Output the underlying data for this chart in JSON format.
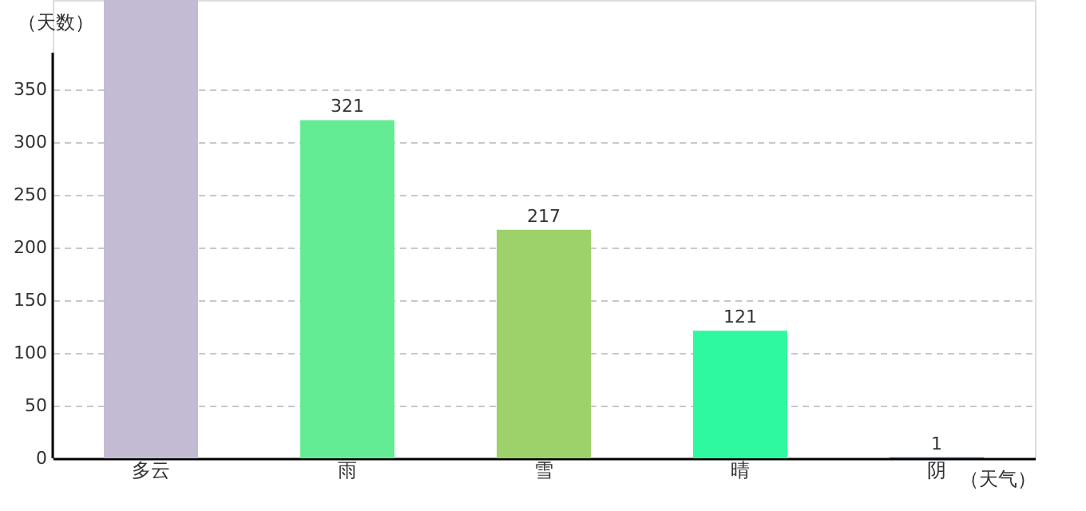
{
  "chart_data": {
    "type": "bar",
    "categories": [
      "多云",
      "雨",
      "雪",
      "晴",
      "阴"
    ],
    "values": [
      435,
      321,
      217,
      121,
      1
    ],
    "colors": [
      "#c3bbd3",
      "#64ec94",
      "#9dd16a",
      "#2ef9a0",
      "#2c4f7a"
    ],
    "value_labels": [
      null,
      "321",
      "217",
      "121",
      "1"
    ],
    "xlabel": "（天气）",
    "ylabel": "（天数）",
    "ylim": [
      0,
      435
    ],
    "yticks": [
      0,
      50,
      100,
      150,
      200,
      250,
      300,
      350
    ],
    "grid": "y",
    "legend": false
  }
}
